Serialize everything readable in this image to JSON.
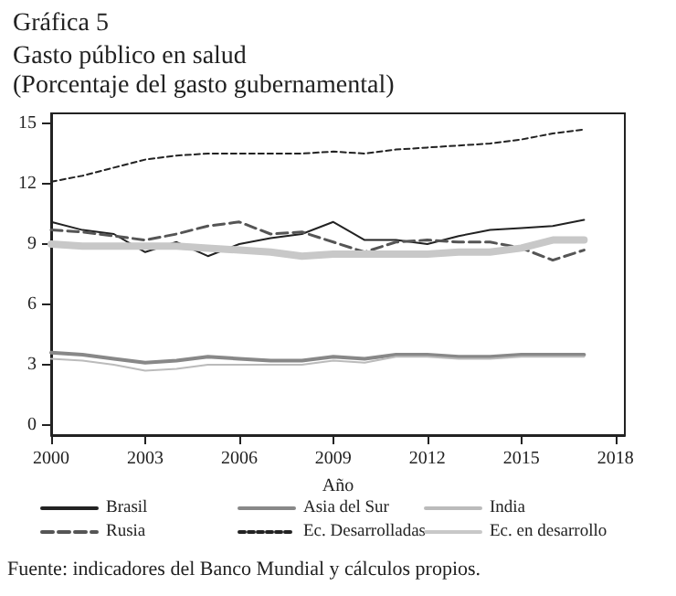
{
  "chart_data": {
    "type": "line",
    "title": "Gráfica 5",
    "subtitle": "Gasto público en salud\n(Porcentaje del gasto gubernamental)",
    "xlabel": "Año",
    "annotations": [
      "Fuente: indicadores del Banco Mundial y cálculos propios."
    ],
    "x": [
      2000,
      2001,
      2002,
      2003,
      2004,
      2005,
      2006,
      2007,
      2008,
      2009,
      2010,
      2011,
      2012,
      2013,
      2014,
      2015,
      2016,
      2017
    ],
    "series": [
      {
        "name": "Brasil",
        "color": "#222222",
        "line_style": "solid",
        "values": [
          10.1,
          9.7,
          9.5,
          8.6,
          9.1,
          8.4,
          9.0,
          9.3,
          9.5,
          10.1,
          9.2,
          9.2,
          9.0,
          9.4,
          9.7,
          9.8,
          9.9,
          10.2
        ]
      },
      {
        "name": "Asia del Sur",
        "color": "#888888",
        "line_style": "solid",
        "values": [
          3.6,
          3.5,
          3.3,
          3.1,
          3.2,
          3.4,
          3.3,
          3.2,
          3.2,
          3.4,
          3.3,
          3.5,
          3.5,
          3.4,
          3.4,
          3.5,
          3.5,
          3.5
        ]
      },
      {
        "name": "India",
        "color": "#bbbbbb",
        "line_style": "solid",
        "values": [
          3.3,
          3.2,
          3.0,
          2.7,
          2.8,
          3.0,
          3.0,
          3.0,
          3.0,
          3.2,
          3.1,
          3.4,
          3.4,
          3.3,
          3.3,
          3.4,
          3.4,
          3.4
        ]
      },
      {
        "name": "Rusia",
        "color": "#555555",
        "line_style": "dashed",
        "values": [
          9.7,
          9.6,
          9.4,
          9.2,
          9.5,
          9.9,
          10.1,
          9.5,
          9.6,
          9.1,
          8.6,
          9.1,
          9.2,
          9.1,
          9.1,
          8.8,
          8.2,
          8.7
        ]
      },
      {
        "name": "Ec. Desarrolladas",
        "color": "#222222",
        "line_style": "dotted",
        "values": [
          12.1,
          12.4,
          12.8,
          13.2,
          13.4,
          13.5,
          13.5,
          13.5,
          13.5,
          13.6,
          13.5,
          13.7,
          13.8,
          13.9,
          14.0,
          14.2,
          14.5,
          14.7
        ]
      },
      {
        "name": "Ec. en desarrollo",
        "color": "#c8c8c8",
        "line_style": "solid",
        "values": [
          9.0,
          8.9,
          8.9,
          8.9,
          8.9,
          8.8,
          8.7,
          8.6,
          8.4,
          8.5,
          8.5,
          8.5,
          8.5,
          8.6,
          8.6,
          8.8,
          9.2,
          9.2
        ]
      }
    ],
    "xlim": [
      2000,
      2018.3
    ],
    "xticks": [
      2000,
      2003,
      2006,
      2009,
      2012,
      2015,
      2018
    ],
    "ylim": [
      -0.5,
      15.5
    ],
    "yticks": [
      0,
      3,
      6,
      9,
      12,
      15
    ],
    "grid": false,
    "legend": "bottom",
    "marker": "none"
  }
}
